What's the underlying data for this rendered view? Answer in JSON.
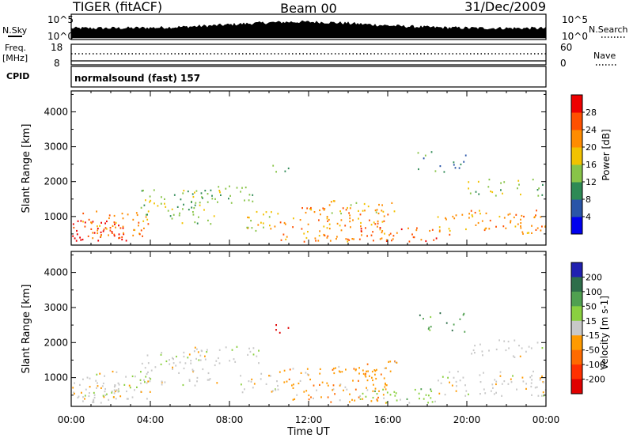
{
  "header": {
    "title": "TIGER (fitACF)",
    "beam": "Beam 00",
    "date": "31/Dec/2009"
  },
  "strips": {
    "nsky_label": "N.Sky",
    "nsky_tick_top": "10^5",
    "nsky_tick_bottom": "10^0",
    "nsearch_label": "N.Search",
    "nsearch_tick_top": "10^5",
    "nsearch_tick_bottom": "10^0",
    "freq_label": "Freq.",
    "freq_unit": "[MHz]",
    "freq_tick_top": "18",
    "freq_tick_bottom": "8",
    "nave_label": "Nave",
    "nave_tick_top": "60",
    "nave_tick_bottom": "0",
    "cpid_label": "CPID",
    "cpid_text": "normalsound (fast) 157"
  },
  "chart_data": [
    {
      "type": "heatmap",
      "name": "power",
      "ylabel": "Slant Range [km]",
      "yticks": [
        "1000",
        "2000",
        "3000",
        "4000"
      ],
      "ylim": [
        180,
        4600
      ],
      "colorbar": {
        "label": "Power [dB]",
        "ticks": [
          "4",
          "8",
          "12",
          "16",
          "20",
          "24",
          "28"
        ],
        "colors": [
          "#0000ee",
          "#2a55a8",
          "#2e8a55",
          "#88c448",
          "#f2c200",
          "#ff8c00",
          "#ff5000",
          "#ee0000"
        ]
      }
    },
    {
      "type": "heatmap",
      "name": "velocity",
      "ylabel": "Slant Range [km]",
      "xlabel": "Time UT",
      "xticks": [
        "00:00",
        "04:00",
        "08:00",
        "12:00",
        "16:00",
        "20:00",
        "00:00"
      ],
      "yticks": [
        "1000",
        "2000",
        "3000",
        "4000"
      ],
      "ylim": [
        180,
        4600
      ],
      "colorbar": {
        "label": "Velocity [m s-1]",
        "ticks": [
          "200",
          "100",
          "50",
          "15",
          "-15",
          "-50",
          "-100",
          "-200"
        ],
        "colors": [
          "#2020b0",
          "#2e6e4a",
          "#50a050",
          "#8ad040",
          "#c8c8c8",
          "#ff9a00",
          "#ff6a00",
          "#ff3000",
          "#e00000"
        ]
      }
    }
  ]
}
